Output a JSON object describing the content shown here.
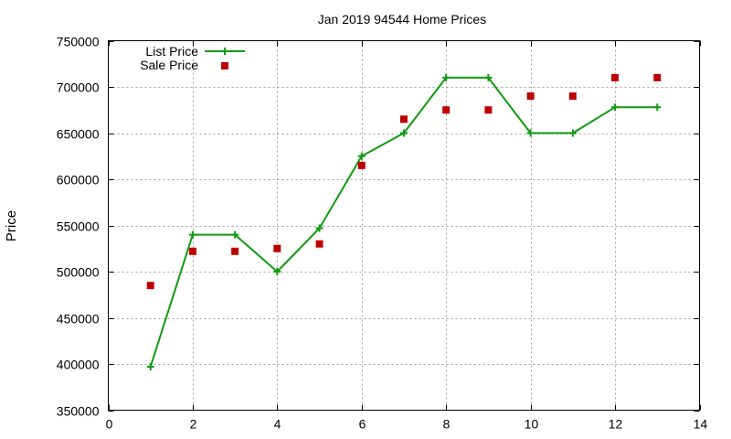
{
  "chart_data": {
    "type": "line",
    "title": "Jan 2019 94544 Home Prices",
    "xlabel": "",
    "ylabel": "Price",
    "xlim": [
      0,
      14
    ],
    "ylim": [
      350000,
      750000
    ],
    "x_ticks": [
      0,
      2,
      4,
      6,
      8,
      10,
      12,
      14
    ],
    "y_ticks": [
      350000,
      400000,
      450000,
      500000,
      550000,
      600000,
      650000,
      700000,
      750000
    ],
    "grid": true,
    "legend_position": "top-left",
    "series": [
      {
        "name": "List Price",
        "style": "line+cross",
        "color": "#109b10",
        "x": [
          1,
          2,
          3,
          4,
          5,
          6,
          7,
          8,
          9,
          10,
          11,
          12,
          13
        ],
        "y": [
          397000,
          540000,
          540000,
          500000,
          547000,
          625000,
          650000,
          710000,
          710000,
          650000,
          650000,
          678000,
          678000
        ]
      },
      {
        "name": "Sale Price",
        "style": "square",
        "color": "#c00000",
        "x": [
          1,
          2,
          3,
          4,
          5,
          6,
          7,
          8,
          9,
          10,
          11,
          12,
          13
        ],
        "y": [
          485000,
          522000,
          522000,
          525000,
          530000,
          615000,
          665000,
          675000,
          675000,
          690000,
          690000,
          710000,
          710000
        ]
      }
    ]
  }
}
